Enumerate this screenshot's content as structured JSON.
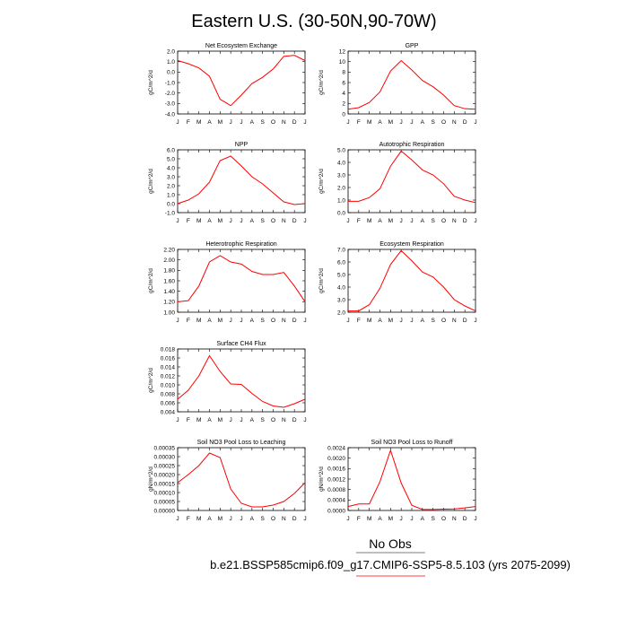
{
  "figure": {
    "title": "Eastern U.S. (30-50N,90-70W)",
    "obs_label": "No Obs",
    "case_label": "b.e21.BSSP585cmip6.f09_g17.CMIP6-SSP5-8.5.103 (yrs 2075-2099)",
    "colors": {
      "model_line": "#ff0000",
      "axis": "#000000"
    }
  },
  "chart_data": [
    {
      "type": "line",
      "title": "Net Ecosystem Exchange",
      "ylabel": "gC/m^2/d",
      "categories": [
        "J",
        "F",
        "M",
        "A",
        "M",
        "J",
        "J",
        "A",
        "S",
        "O",
        "N",
        "D",
        "J"
      ],
      "series": [
        {
          "values": [
            1.1,
            0.8,
            0.4,
            -0.4,
            -2.6,
            -3.2,
            -2.2,
            -1.1,
            -0.5,
            0.3,
            1.5,
            1.6,
            1.1
          ]
        }
      ],
      "ylim": [
        -4.0,
        2.0
      ],
      "yticks": [
        2.0,
        1.0,
        0.0,
        -1.0,
        -2.0,
        -3.0,
        -4.0
      ],
      "ytick_labels": [
        "2.0",
        "1.0",
        "0.0",
        "-1.0",
        "-2.0",
        "-3.0",
        "-4.0"
      ]
    },
    {
      "type": "line",
      "title": "GPP",
      "ylabel": "gC/m^2/d",
      "categories": [
        "J",
        "F",
        "M",
        "A",
        "M",
        "J",
        "J",
        "A",
        "S",
        "O",
        "N",
        "D",
        "J"
      ],
      "series": [
        {
          "values": [
            0.9,
            1.2,
            2.2,
            4.2,
            8.2,
            10.2,
            8.4,
            6.4,
            5.2,
            3.6,
            1.6,
            1.0,
            0.9
          ]
        }
      ],
      "ylim": [
        0,
        12
      ],
      "yticks": [
        12,
        10,
        8,
        6,
        4,
        2,
        0
      ],
      "ytick_labels": [
        "12",
        "10",
        "8",
        "6",
        "4",
        "2",
        "0"
      ]
    },
    {
      "type": "line",
      "title": "NPP",
      "ylabel": "gC/m^2/d",
      "categories": [
        "J",
        "F",
        "M",
        "A",
        "M",
        "J",
        "J",
        "A",
        "S",
        "O",
        "N",
        "D",
        "J"
      ],
      "series": [
        {
          "values": [
            0.0,
            0.4,
            1.1,
            2.4,
            4.8,
            5.3,
            4.2,
            3.0,
            2.2,
            1.2,
            0.2,
            -0.1,
            0.0
          ]
        }
      ],
      "ylim": [
        -1.0,
        6.0
      ],
      "yticks": [
        6.0,
        5.0,
        4.0,
        3.0,
        2.0,
        1.0,
        0.0,
        -1.0
      ],
      "ytick_labels": [
        "6.0",
        "5.0",
        "4.0",
        "3.0",
        "2.0",
        "1.0",
        "0.0",
        "-1.0"
      ]
    },
    {
      "type": "line",
      "title": "Autotrophic Respiration",
      "ylabel": "gC/m^2/d",
      "categories": [
        "J",
        "F",
        "M",
        "A",
        "M",
        "J",
        "J",
        "A",
        "S",
        "O",
        "N",
        "D",
        "J"
      ],
      "series": [
        {
          "values": [
            0.9,
            0.9,
            1.2,
            1.9,
            3.7,
            4.9,
            4.2,
            3.4,
            3.0,
            2.3,
            1.3,
            1.0,
            0.8
          ]
        }
      ],
      "ylim": [
        0.0,
        5.0
      ],
      "yticks": [
        5.0,
        4.0,
        3.0,
        2.0,
        1.0,
        0.0
      ],
      "ytick_labels": [
        "5.0",
        "4.0",
        "3.0",
        "2.0",
        "1.0",
        "0.0"
      ]
    },
    {
      "type": "line",
      "title": "Heterotrophic Respiration",
      "ylabel": "gC/m^2/d",
      "categories": [
        "J",
        "F",
        "M",
        "A",
        "M",
        "J",
        "J",
        "A",
        "S",
        "O",
        "N",
        "D",
        "J"
      ],
      "series": [
        {
          "values": [
            1.2,
            1.22,
            1.5,
            1.96,
            2.08,
            1.96,
            1.92,
            1.78,
            1.72,
            1.72,
            1.76,
            1.5,
            1.2
          ]
        }
      ],
      "ylim": [
        1.0,
        2.2
      ],
      "yticks": [
        2.2,
        2.0,
        1.8,
        1.6,
        1.4,
        1.2,
        1.0
      ],
      "ytick_labels": [
        "2.20",
        "2.00",
        "1.80",
        "1.60",
        "1.40",
        "1.20",
        "1.00"
      ]
    },
    {
      "type": "line",
      "title": "Ecosystem Respiration",
      "ylabel": "gC/m^2/d",
      "categories": [
        "J",
        "F",
        "M",
        "A",
        "M",
        "J",
        "J",
        "A",
        "S",
        "O",
        "N",
        "D",
        "J"
      ],
      "series": [
        {
          "values": [
            2.1,
            2.1,
            2.6,
            3.9,
            5.8,
            6.9,
            6.1,
            5.2,
            4.8,
            4.0,
            3.0,
            2.5,
            2.1
          ]
        }
      ],
      "ylim": [
        2.0,
        7.0
      ],
      "yticks": [
        7.0,
        6.0,
        5.0,
        4.0,
        3.0,
        2.0
      ],
      "ytick_labels": [
        "7.0",
        "6.0",
        "5.0",
        "4.0",
        "3.0",
        "2.0"
      ]
    },
    {
      "type": "line",
      "title": "Surface CH4 Flux",
      "ylabel": "gC/m^2/d",
      "categories": [
        "J",
        "F",
        "M",
        "A",
        "M",
        "J",
        "J",
        "A",
        "S",
        "O",
        "N",
        "D",
        "J"
      ],
      "series": [
        {
          "values": [
            0.0068,
            0.0088,
            0.012,
            0.0165,
            0.013,
            0.0102,
            0.0101,
            0.0081,
            0.0063,
            0.0053,
            0.005,
            0.0058,
            0.0068
          ]
        }
      ],
      "ylim": [
        0.004,
        0.018
      ],
      "yticks": [
        0.018,
        0.016,
        0.014,
        0.012,
        0.01,
        0.008,
        0.006,
        0.004
      ],
      "ytick_labels": [
        "0.018",
        "0.016",
        "0.014",
        "0.012",
        "0.010",
        "0.008",
        "0.006",
        "0.004"
      ]
    },
    {
      "type": "line",
      "title": "Soil NO3 Pool Loss to Leaching",
      "ylabel": "gN/m^2/d",
      "categories": [
        "J",
        "F",
        "M",
        "A",
        "M",
        "J",
        "J",
        "A",
        "S",
        "O",
        "N",
        "D",
        "J"
      ],
      "series": [
        {
          "values": [
            0.000155,
            0.0002,
            0.00025,
            0.00032,
            0.000295,
            0.00012,
            4e-05,
            2e-05,
            2e-05,
            3e-05,
            5e-05,
            9.5e-05,
            0.000155
          ]
        }
      ],
      "ylim": [
        0.0,
        0.00035
      ],
      "yticks": [
        0.00035,
        0.0003,
        0.00025,
        0.0002,
        0.00015,
        0.0001,
        5e-05,
        0.0
      ],
      "ytick_labels": [
        "0.00035",
        "0.00030",
        "0.00025",
        "0.00020",
        "0.00015",
        "0.00010",
        "0.00005",
        "0.00000"
      ]
    },
    {
      "type": "line",
      "title": "Soil NO3 Pool Loss to Runoff",
      "ylabel": "gN/m^2/d",
      "categories": [
        "J",
        "F",
        "M",
        "A",
        "M",
        "J",
        "J",
        "A",
        "S",
        "O",
        "N",
        "D",
        "J"
      ],
      "series": [
        {
          "values": [
            0.00015,
            0.00025,
            0.00025,
            0.0011,
            0.0023,
            0.00105,
            0.0002,
            4e-05,
            4e-05,
            5e-05,
            6e-05,
            0.0001,
            0.00015
          ]
        }
      ],
      "ylim": [
        0.0,
        0.0024
      ],
      "yticks": [
        0.0024,
        0.002,
        0.0016,
        0.0012,
        0.0008,
        0.0004,
        0.0
      ],
      "ytick_labels": [
        "0.0024",
        "0.0020",
        "0.0016",
        "0.0012",
        "0.0008",
        "0.0004",
        "0.0000"
      ]
    }
  ]
}
